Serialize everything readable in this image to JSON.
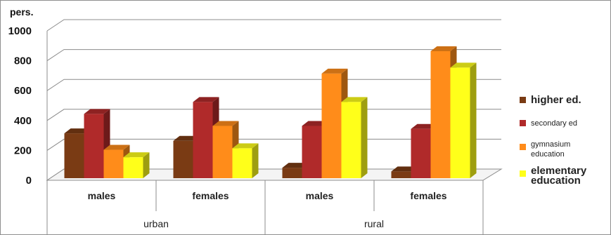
{
  "chart_data": {
    "type": "bar",
    "subtype": "3d-clustered-column",
    "ylabel": "pers.",
    "ylim": [
      0,
      1000
    ],
    "yticks": [
      "0",
      "200",
      "400",
      "600",
      "800",
      "1000"
    ],
    "grid": true,
    "legend_position": "right",
    "groups": [
      {
        "label": "urban",
        "categories": [
          "males",
          "females"
        ]
      },
      {
        "label": "rural",
        "categories": [
          "males",
          "females"
        ]
      }
    ],
    "categories": [
      "males",
      "females",
      "males",
      "females"
    ],
    "series": [
      {
        "name": "higher ed.",
        "color": "#7a3b14",
        "values": [
          300,
          250,
          70,
          45
        ]
      },
      {
        "name": "secondary ed",
        "color": "#b02a2a",
        "values": [
          430,
          510,
          350,
          330
        ]
      },
      {
        "name": "gymnasium education",
        "color": "#ff8c1a",
        "values": [
          190,
          350,
          700,
          850
        ]
      },
      {
        "name": "elementary education",
        "color": "#ffff1a",
        "values": [
          140,
          200,
          510,
          740
        ]
      }
    ],
    "legend": {
      "items": [
        {
          "lines": [
            "higher ed."
          ],
          "style": "big"
        },
        {
          "lines": [
            "secondary ed"
          ],
          "style": "small"
        },
        {
          "lines": [
            "gymnasium",
            "education"
          ],
          "style": "small"
        },
        {
          "lines": [
            "elementary",
            "education"
          ],
          "style": "big"
        }
      ]
    }
  }
}
